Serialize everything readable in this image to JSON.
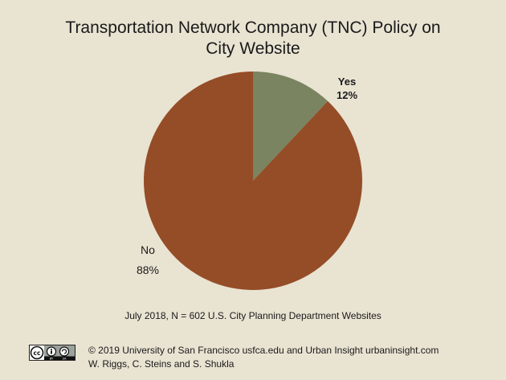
{
  "chart_data": {
    "type": "pie",
    "title": [
      "Transportation Network Company (TNC) Policy on",
      "City Website"
    ],
    "slices": [
      {
        "label": "Yes",
        "value": 12,
        "value_label": "12%",
        "color": "#7a8460"
      },
      {
        "label": "No",
        "value": 88,
        "value_label": "88%",
        "color": "#954d27"
      }
    ],
    "start_angle_deg": 0,
    "direction": "clockwise",
    "legend": "none"
  },
  "note": "July 2018, N = 602 U.S. City Planning Department Websites",
  "footer": {
    "license_badge": "cc-by-sa-icon",
    "line1": "© 2019 University of San Francisco usfca.edu and Urban Insight urbaninsight.com",
    "line2": "W. Riggs, C. Steins and S. Shukla"
  }
}
